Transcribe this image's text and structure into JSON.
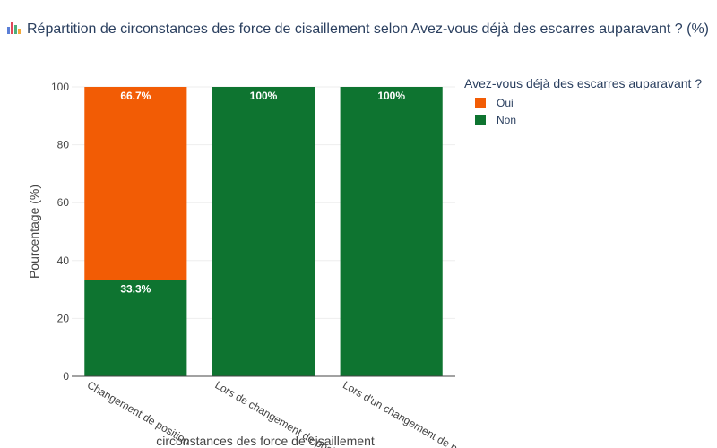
{
  "title": "Répartition de circonstances des force de cisaillement selon Avez-vous déjà des escarres auparavant ? (%)",
  "title_icon": "bar-chart-icon",
  "legend": {
    "title": "Avez-vous déjà des escarres auparavant ?"
  },
  "chart_data": {
    "type": "bar",
    "stacked": true,
    "categories": [
      "Changement de position",
      "Lors de changement de position",
      "Lors d'un changement de position"
    ],
    "series": [
      {
        "name": "Non",
        "color": "#0e7430",
        "values": [
          33.3,
          100,
          100
        ],
        "labels": [
          "33.3%",
          "100%",
          "100%"
        ]
      },
      {
        "name": "Oui",
        "color": "#f25c05",
        "values": [
          66.7,
          0,
          0
        ],
        "labels": [
          "66.7%",
          "",
          ""
        ]
      }
    ],
    "legend_order": [
      "Oui",
      "Non"
    ],
    "xlabel": "circonstances des force de cisaillement",
    "ylabel": "Pourcentage (%)",
    "ylim": [
      0,
      100
    ],
    "yticks": [
      0,
      20,
      40,
      60,
      80,
      100
    ],
    "grid": true,
    "legend_position": "top-right"
  }
}
